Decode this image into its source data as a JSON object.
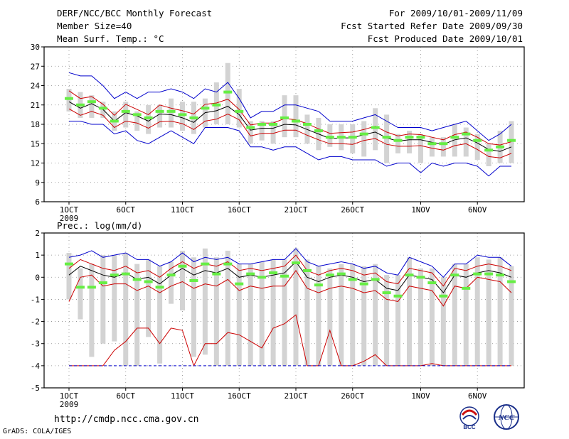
{
  "header": {
    "title": "DERF/NCC/BCC Monthly Forecast",
    "member": "Member Size=40",
    "variable": "Mean Surf. Temp.: °C",
    "period": "For 2009/10/01-2009/11/09",
    "started": "Fcst Started Refer Date 2009/09/30",
    "produced": "Fcst Produced Date 2009/10/01"
  },
  "footer": {
    "url": "http://cmdp.ncc.cma.gov.cn",
    "grads": "GrADS: COLA/IGES",
    "logo_bcc": "BCC",
    "logo_ncc": "NCC"
  },
  "colors": {
    "mean_line": "#000000",
    "spread_line": "#cc0000",
    "extreme_line": "#0000cc",
    "box": "#d3d3d3",
    "marker": "#66ee44",
    "grid": "#888888"
  },
  "chart_data": [
    {
      "type": "line",
      "title": "Mean Surf. Temp.: °C",
      "xlabel": "",
      "ylabel": "",
      "ylim": [
        6,
        30
      ],
      "yticks": [
        6,
        9,
        12,
        15,
        18,
        21,
        24,
        27,
        30
      ],
      "xticks": [
        {
          "day": 1,
          "label": "1OCT",
          "sub": "2009"
        },
        {
          "day": 6,
          "label": "6OCT"
        },
        {
          "day": 11,
          "label": "11OCT"
        },
        {
          "day": 16,
          "label": "16OCT"
        },
        {
          "day": 21,
          "label": "21OCT"
        },
        {
          "day": 26,
          "label": "26OCT"
        },
        {
          "day": 32,
          "label": "1NOV"
        },
        {
          "day": 37,
          "label": "6NOV"
        }
      ],
      "x": [
        1,
        2,
        3,
        4,
        5,
        6,
        7,
        8,
        9,
        10,
        11,
        12,
        13,
        14,
        15,
        16,
        17,
        18,
        19,
        20,
        21,
        22,
        23,
        24,
        25,
        26,
        27,
        28,
        29,
        30,
        31,
        32,
        33,
        34,
        35,
        36,
        37,
        38,
        39,
        40
      ],
      "series": [
        {
          "name": "ensemble mean",
          "values": [
            21.5,
            20.5,
            21.2,
            20.3,
            18.5,
            19.8,
            19.3,
            18.5,
            19.6,
            19.5,
            19.0,
            18.3,
            19.8,
            20.1,
            20.8,
            19.5,
            17.1,
            17.4,
            17.4,
            18.0,
            17.9,
            17.2,
            16.5,
            15.8,
            15.9,
            15.9,
            16.4,
            16.8,
            15.9,
            15.4,
            15.6,
            15.6,
            15.2,
            14.9,
            15.6,
            15.9,
            15.1,
            14.1,
            13.8,
            14.5
          ]
        },
        {
          "name": "upper spread",
          "values": [
            23.2,
            22.0,
            22.3,
            21.1,
            19.4,
            21.1,
            20.3,
            19.5,
            21.0,
            20.5,
            20.1,
            19.6,
            21.1,
            21.3,
            21.9,
            20.3,
            17.9,
            18.2,
            18.2,
            18.9,
            18.7,
            18.1,
            17.3,
            16.6,
            16.7,
            16.8,
            17.2,
            17.7,
            16.8,
            16.2,
            16.5,
            16.4,
            16.0,
            15.6,
            16.4,
            16.8,
            16.0,
            15.0,
            14.8,
            15.3
          ]
        },
        {
          "name": "lower spread",
          "values": [
            20.4,
            19.4,
            20.0,
            19.4,
            17.5,
            18.5,
            18.2,
            17.4,
            18.4,
            18.5,
            18.1,
            17.2,
            18.5,
            18.8,
            19.6,
            18.7,
            16.2,
            16.6,
            16.6,
            17.1,
            17.1,
            16.3,
            15.6,
            15.0,
            15.0,
            14.9,
            15.5,
            15.8,
            14.9,
            14.6,
            14.6,
            14.7,
            14.3,
            14.0,
            14.7,
            15.0,
            14.1,
            13.0,
            12.8,
            13.5
          ]
        },
        {
          "name": "maximum",
          "values": [
            26.0,
            25.5,
            25.5,
            24.0,
            22.0,
            23.0,
            22.0,
            23.0,
            23.0,
            23.5,
            23.0,
            22.0,
            23.5,
            23.0,
            24.5,
            22.0,
            19.0,
            20.0,
            20.0,
            21.0,
            21.0,
            20.5,
            20.0,
            18.5,
            18.5,
            18.5,
            19.0,
            19.5,
            18.5,
            17.5,
            17.5,
            17.5,
            17.0,
            17.5,
            18.0,
            18.5,
            17.0,
            15.5,
            16.5,
            18.0
          ]
        },
        {
          "name": "minimum",
          "values": [
            18.5,
            18.5,
            18.0,
            18.0,
            16.5,
            17.0,
            15.5,
            15.0,
            16.0,
            17.0,
            16.0,
            15.0,
            17.5,
            17.5,
            17.5,
            17.0,
            14.5,
            14.5,
            14.0,
            14.5,
            14.5,
            13.5,
            12.5,
            13.0,
            13.0,
            12.5,
            12.5,
            12.5,
            11.5,
            12.0,
            12.0,
            10.5,
            12.0,
            11.5,
            12.0,
            12.0,
            11.5,
            10.0,
            11.5,
            11.5
          ]
        }
      ],
      "box_low": [
        20.0,
        19.0,
        19.0,
        19.0,
        17.0,
        17.5,
        17.0,
        16.5,
        17.5,
        17.5,
        17.0,
        16.5,
        17.5,
        18.0,
        18.0,
        17.5,
        15.0,
        15.5,
        15.0,
        16.0,
        16.0,
        15.0,
        14.0,
        14.5,
        14.0,
        13.5,
        13.0,
        14.0,
        12.0,
        13.5,
        13.5,
        12.0,
        13.0,
        13.0,
        13.0,
        13.0,
        12.5,
        11.5,
        12.0,
        12.0
      ],
      "box_high": [
        23.5,
        23.0,
        22.5,
        21.5,
        20.0,
        21.5,
        20.0,
        21.0,
        21.0,
        22.0,
        21.5,
        21.5,
        22.0,
        24.5,
        27.5,
        23.5,
        18.5,
        18.5,
        18.5,
        22.5,
        22.5,
        19.5,
        19.0,
        18.0,
        18.0,
        18.0,
        18.5,
        20.5,
        19.5,
        16.5,
        17.0,
        16.5,
        16.0,
        16.0,
        18.0,
        17.5,
        16.5,
        15.0,
        17.0,
        18.5
      ],
      "marker": [
        22.0,
        21.0,
        21.5,
        20.5,
        18.5,
        20.0,
        19.5,
        19.0,
        20.0,
        20.0,
        19.5,
        19.0,
        20.5,
        21.0,
        23.0,
        20.0,
        17.5,
        18.0,
        18.0,
        19.0,
        18.5,
        18.0,
        17.0,
        16.0,
        16.0,
        16.0,
        16.5,
        17.5,
        16.0,
        15.5,
        16.0,
        16.0,
        15.0,
        15.0,
        16.0,
        16.5,
        15.5,
        14.0,
        14.5,
        15.5
      ]
    },
    {
      "type": "line",
      "title": "Prec.: log(mm/d)",
      "xlabel": "",
      "ylabel": "",
      "ylim": [
        -5,
        2
      ],
      "yticks": [
        -5,
        -4,
        -3,
        -2,
        -1,
        0,
        1,
        2
      ],
      "xticks": [
        {
          "day": 1,
          "label": "1OCT",
          "sub": "2009"
        },
        {
          "day": 6,
          "label": "6OCT"
        },
        {
          "day": 11,
          "label": "11OCT"
        },
        {
          "day": 16,
          "label": "16OCT"
        },
        {
          "day": 21,
          "label": "21OCT"
        },
        {
          "day": 26,
          "label": "26OCT"
        },
        {
          "day": 32,
          "label": "1NOV"
        },
        {
          "day": 37,
          "label": "6NOV"
        }
      ],
      "x": [
        1,
        2,
        3,
        4,
        5,
        6,
        7,
        8,
        9,
        10,
        11,
        12,
        13,
        14,
        15,
        16,
        17,
        18,
        19,
        20,
        21,
        22,
        23,
        24,
        25,
        26,
        27,
        28,
        29,
        30,
        31,
        32,
        33,
        34,
        35,
        36,
        37,
        38,
        39,
        40
      ],
      "series": [
        {
          "name": "ensemble mean",
          "values": [
            0.1,
            0.5,
            0.3,
            0.1,
            0.0,
            0.2,
            -0.1,
            0.0,
            -0.3,
            0.1,
            0.4,
            0.1,
            0.3,
            0.2,
            0.4,
            0.0,
            0.1,
            0.0,
            0.1,
            0.2,
            0.7,
            0.0,
            -0.2,
            0.0,
            0.1,
            0.0,
            -0.2,
            -0.1,
            -0.5,
            -0.6,
            0.1,
            0.0,
            -0.1,
            -0.7,
            0.1,
            0.0,
            0.2,
            0.3,
            0.2,
            0.0
          ]
        },
        {
          "name": "upper spread",
          "values": [
            0.4,
            0.8,
            0.6,
            0.4,
            0.3,
            0.5,
            0.2,
            0.3,
            0.0,
            0.4,
            0.7,
            0.4,
            0.6,
            0.5,
            0.7,
            0.3,
            0.4,
            0.3,
            0.4,
            0.5,
            1.0,
            0.3,
            0.1,
            0.3,
            0.4,
            0.3,
            0.1,
            0.2,
            -0.2,
            -0.3,
            0.4,
            0.3,
            0.2,
            -0.4,
            0.4,
            0.3,
            0.5,
            0.6,
            0.5,
            0.3
          ]
        },
        {
          "name": "lower spread",
          "values": [
            -1.1,
            0.0,
            0.1,
            -0.4,
            -0.3,
            -0.3,
            -0.6,
            -0.4,
            -0.7,
            -0.4,
            -0.2,
            -0.5,
            -0.3,
            -0.4,
            -0.1,
            -0.6,
            -0.4,
            -0.5,
            -0.4,
            -0.4,
            0.3,
            -0.5,
            -0.7,
            -0.5,
            -0.4,
            -0.5,
            -0.7,
            -0.6,
            -1.0,
            -1.1,
            -0.4,
            -0.5,
            -0.6,
            -1.3,
            -0.4,
            -0.5,
            0.0,
            -0.1,
            -0.2,
            -0.7
          ]
        },
        {
          "name": "maximum",
          "values": [
            0.9,
            1.0,
            1.2,
            0.9,
            1.0,
            1.1,
            0.8,
            0.8,
            0.5,
            0.7,
            1.1,
            0.7,
            0.9,
            0.8,
            0.9,
            0.6,
            0.6,
            0.7,
            0.8,
            0.8,
            1.3,
            0.7,
            0.5,
            0.6,
            0.7,
            0.6,
            0.4,
            0.5,
            0.2,
            0.1,
            0.9,
            0.7,
            0.5,
            0.0,
            0.6,
            0.6,
            1.0,
            0.9,
            0.9,
            0.5
          ]
        },
        {
          "name": "minimum",
          "values": [
            -4.0,
            -4.0,
            -4.0,
            -4.0,
            -3.3,
            -2.9,
            -2.3,
            -2.3,
            -3.0,
            -2.3,
            -2.4,
            -4.0,
            -3.0,
            -3.0,
            -2.5,
            -2.6,
            -2.9,
            -3.2,
            -2.3,
            -2.1,
            -1.7,
            -4.0,
            -4.0,
            -2.4,
            -4.0,
            -4.0,
            -3.8,
            -3.5,
            -4.0,
            -4.0,
            -4.0,
            -4.0,
            -3.9,
            -4.0,
            -4.0,
            -4.0,
            -4.0,
            -4.0,
            -4.0,
            -4.0
          ]
        }
      ],
      "box_low": [
        -1.0,
        -1.9,
        -3.6,
        -3.0,
        -2.9,
        -4.0,
        -4.0,
        -2.7,
        -3.9,
        -1.2,
        -1.5,
        -3.6,
        -3.5,
        -4.0,
        -4.0,
        -4.0,
        -4.0,
        -4.0,
        -4.0,
        -4.0,
        -4.0,
        -4.0,
        -4.0,
        -4.0,
        -4.0,
        -4.0,
        -4.0,
        -4.0,
        -4.0,
        -4.0,
        -4.0,
        -4.0,
        -4.0,
        -4.0,
        -4.0,
        -4.0,
        -4.0,
        -4.0,
        -4.0,
        -4.0
      ],
      "box_high": [
        1.1,
        0.4,
        0.6,
        1.0,
        1.0,
        1.1,
        0.6,
        0.8,
        0.5,
        0.7,
        1.2,
        0.9,
        1.3,
        0.9,
        1.2,
        0.6,
        0.6,
        0.7,
        0.8,
        0.8,
        1.3,
        0.8,
        0.5,
        0.4,
        0.6,
        0.6,
        0.5,
        0.6,
        0.1,
        0.1,
        0.9,
        0.4,
        0.4,
        0.0,
        0.6,
        0.6,
        0.9,
        0.8,
        0.9,
        0.5
      ],
      "marker": [
        0.6,
        -0.45,
        -0.45,
        -0.25,
        0.1,
        0.15,
        -0.1,
        -0.2,
        -0.45,
        0.1,
        0.5,
        -0.15,
        0.6,
        0.15,
        0.6,
        -0.3,
        0.15,
        0.0,
        0.2,
        0.05,
        0.65,
        0.3,
        -0.35,
        0.1,
        0.15,
        -0.1,
        -0.3,
        -0.1,
        -0.7,
        -0.85,
        0.1,
        0.0,
        -0.25,
        -0.85,
        0.1,
        -0.5,
        0.15,
        0.15,
        0.1,
        -0.2
      ]
    }
  ]
}
